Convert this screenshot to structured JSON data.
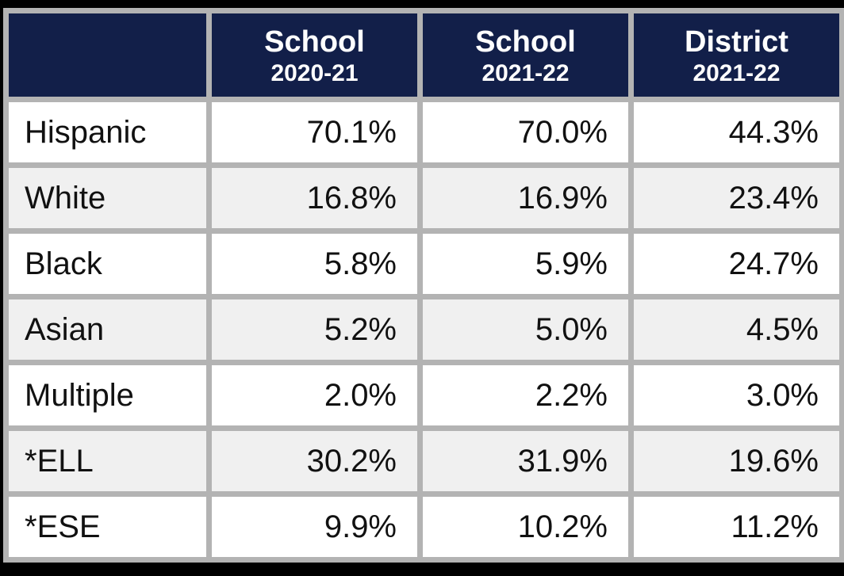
{
  "table": {
    "columns": [
      {
        "label": "",
        "sublabel": ""
      },
      {
        "label": "School",
        "sublabel": "2020-21"
      },
      {
        "label": "School",
        "sublabel": "2021-22"
      },
      {
        "label": "District",
        "sublabel": "2021-22"
      }
    ],
    "rows": [
      {
        "label": "Hispanic",
        "values": [
          "70.1%",
          "70.0%",
          "44.3%"
        ]
      },
      {
        "label": "White",
        "values": [
          "16.8%",
          "16.9%",
          "23.4%"
        ]
      },
      {
        "label": "Black",
        "values": [
          "5.8%",
          "5.9%",
          "24.7%"
        ]
      },
      {
        "label": "Asian",
        "values": [
          "5.2%",
          "5.0%",
          "4.5%"
        ]
      },
      {
        "label": "Multiple",
        "values": [
          "2.0%",
          "2.2%",
          "3.0%"
        ]
      },
      {
        "label": "*ELL",
        "values": [
          "30.2%",
          "31.9%",
          "19.6%"
        ]
      },
      {
        "label": "*ESE",
        "values": [
          "9.9%",
          "10.2%",
          "11.2%"
        ]
      }
    ]
  },
  "colors": {
    "header_background": "#121f49",
    "header_text": "#ffffff",
    "border_gray": "#b3b3b3",
    "row_alt_background": "#f0f0f0",
    "row_background": "#ffffff",
    "body_text": "#111111",
    "outer_frame": "#000000"
  },
  "chart_data": {
    "type": "table",
    "title": "",
    "columns": [
      "",
      "School 2020-21",
      "School 2021-22",
      "District 2021-22"
    ],
    "categories": [
      "Hispanic",
      "White",
      "Black",
      "Asian",
      "Multiple",
      "*ELL",
      "*ESE"
    ],
    "series": [
      {
        "name": "School 2020-21",
        "values": [
          70.1,
          16.8,
          5.8,
          5.2,
          2.0,
          30.2,
          9.9
        ]
      },
      {
        "name": "School 2021-22",
        "values": [
          70.0,
          16.9,
          5.9,
          5.0,
          2.2,
          31.9,
          10.2
        ]
      },
      {
        "name": "District 2021-22",
        "values": [
          44.3,
          23.4,
          24.7,
          4.5,
          3.0,
          19.6,
          11.2
        ]
      }
    ],
    "unit": "%"
  }
}
